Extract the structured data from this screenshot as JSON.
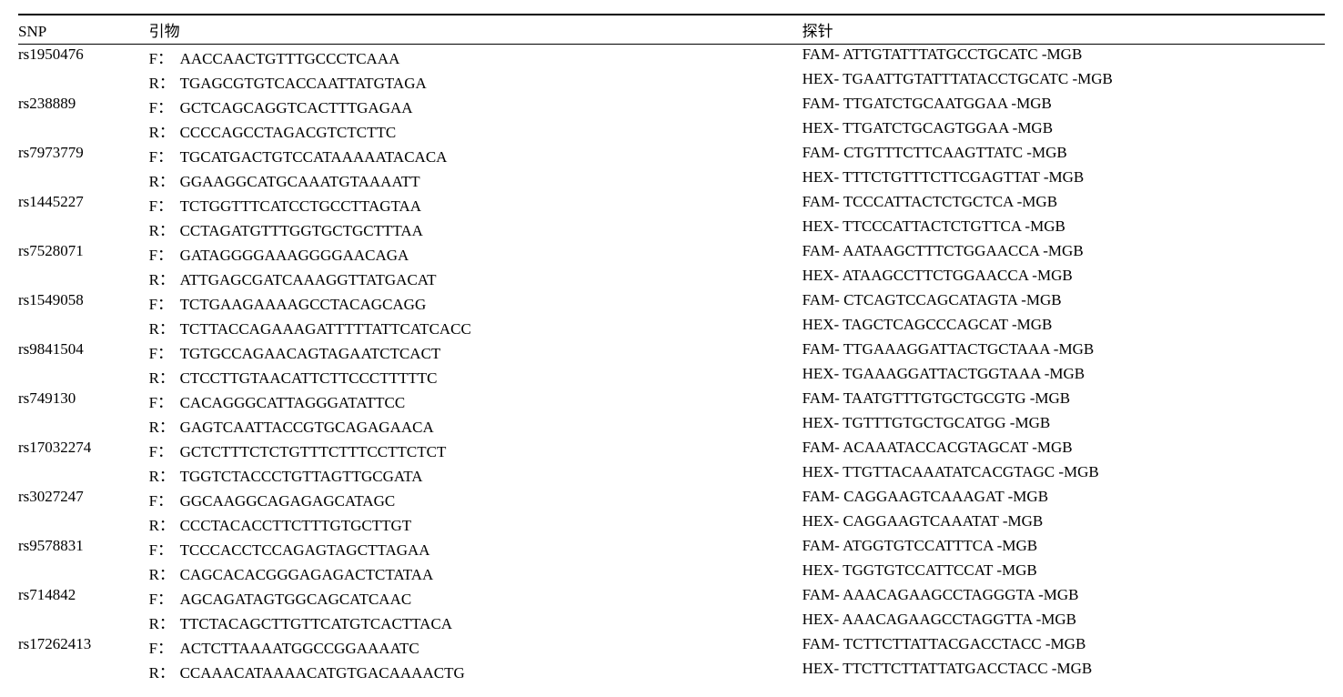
{
  "headers": {
    "snp": "SNP",
    "primer": "引物",
    "probe": "探针"
  },
  "rows": [
    {
      "snp": "rs1950476",
      "f": "AACCAACTGTTTGCCCTCAAA",
      "r": "TGAGCGTGTCACCAATTATGTAGA",
      "fam": "FAM- ATTGTATTTATGCCTGCATC -MGB",
      "hex": "HEX- TGAATTGTATTTATACCTGCATC -MGB"
    },
    {
      "snp": "rs238889",
      "f": "GCTCAGCAGGTCACTTTGAGAA",
      "r": "CCCCAGCCTAGACGTCTCTTC",
      "fam": "FAM- TTGATCTGCAATGGAA -MGB",
      "hex": "HEX- TTGATCTGCAGTGGAA -MGB"
    },
    {
      "snp": "rs7973779",
      "f": "TGCATGACTGTCCATAAAAATACACA",
      "r": "GGAAGGCATGCAAATGTAAAATT",
      "fam": "FAM- CTGTTTCTTCAAGTTATC -MGB",
      "hex": "HEX- TTTCTGTTTCTTCGAGTTAT -MGB"
    },
    {
      "snp": "rs1445227",
      "f": "TCTGGTTTCATCCTGCCTTAGTAA",
      "r": "CCTAGATGTTTGGTGCTGCTTTAA",
      "fam": "FAM- TCCCATTACTCTGCTCA -MGB",
      "hex": "HEX- TTCCCATTACTCTGTTCA -MGB"
    },
    {
      "snp": "rs7528071",
      "f": "GATAGGGGAAAGGGGAACAGA",
      "r": "ATTGAGCGATCAAAGGTTATGACAT",
      "fam": "FAM- AATAAGCTTTCTGGAACCA -MGB",
      "hex": "HEX- ATAAGCCTTCTGGAACCA -MGB"
    },
    {
      "snp": "rs1549058",
      "f": "TCTGAAGAAAAGCCTACAGCAGG",
      "r": "TCTTACCAGAAAGATTTTTATTCATCACC",
      "fam": "FAM- CTCAGTCCAGCATAGTA -MGB",
      "hex": "HEX- TAGCTCAGCCCAGCAT -MGB"
    },
    {
      "snp": "rs9841504",
      "f": "TGTGCCAGAACAGTAGAATCTCACT",
      "r": "CTCCTTGTAACATTCTTCCCTTTTTC",
      "fam": "FAM- TTGAAAGGATTACTGCTAAA -MGB",
      "hex": "HEX- TGAAAGGATTACTGGTAAA -MGB"
    },
    {
      "snp": "rs749130",
      "f": "CACAGGGCATTAGGGATATTCC",
      "r": "GAGTCAATTACCGTGCAGAGAACA",
      "fam": "FAM- TAATGTTTGTGCTGCGTG -MGB",
      "hex": "HEX- TGTTTGTGCTGCATGG -MGB"
    },
    {
      "snp": "rs17032274",
      "f": "GCTCTTTCTCTGTTTCTTTCCTTCTCT",
      "r": "TGGTCTACCCTGTTAGTTGCGATA",
      "fam": "FAM- ACAAATACCACGTAGCAT -MGB",
      "hex": "HEX- TTGTTACAAATATCACGTAGC -MGB"
    },
    {
      "snp": "rs3027247",
      "f": "GGCAAGGCAGAGAGCATAGC",
      "r": "CCCTACACCTTCTTTGTGCTTGT",
      "fam": "FAM- CAGGAAGTCAAAGAT -MGB",
      "hex": "HEX- CAGGAAGTCAAATAT -MGB"
    },
    {
      "snp": "rs9578831",
      "f": "TCCCACCTCCAGAGTAGCTTAGAA",
      "r": "CAGCACACGGGAGAGACTCTATAA",
      "fam": "FAM- ATGGTGTCCATTTCA -MGB",
      "hex": "HEX- TGGTGTCCATTCCAT -MGB"
    },
    {
      "snp": "rs714842",
      "f": "AGCAGATAGTGGCAGCATCAAC",
      "r": "TTCTACAGCTTGTTCATGTCACTTACA",
      "fam": "FAM- AAACAGAAGCCTAGGGTA -MGB",
      "hex": "HEX- AAACAGAAGCCTAGGTTA -MGB"
    },
    {
      "snp": "rs17262413",
      "f": "ACTCTTAAAATGGCCGGAAAATC",
      "r": "CCAAACATAAAACATGTGACAAAACTG",
      "fam": "FAM- TCTTCTTATTACGACCTACC -MGB",
      "hex": "HEX- TTCTTCTTATTATGACCTACC -MGB"
    }
  ],
  "labels": {
    "f": "F：",
    "r": "R："
  }
}
